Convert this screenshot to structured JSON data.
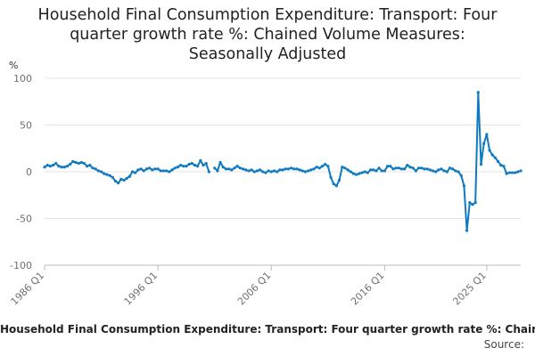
{
  "chart_data": {
    "type": "line",
    "title_lines": [
      "Household Final Consumption Expenditure: Transport: Four",
      "quarter growth rate %: Chained Volume Measures:",
      "Seasonally Adjusted"
    ],
    "ylabel": "%",
    "ylim": [
      -100,
      100
    ],
    "yticks": [
      "100",
      "50",
      "0",
      "-50",
      "-100"
    ],
    "ytick_values": [
      100,
      50,
      0,
      -50,
      -100
    ],
    "xtick_labels": [
      "1986 Q1",
      "1996 Q1",
      "2006 Q1",
      "2016 Q1",
      "2025 Q1"
    ],
    "xtick_index": [
      0,
      40,
      80,
      120,
      156
    ],
    "grid": true,
    "legend": "Household Final Consumption Expenditure: Transport: Four quarter growth rate %: Chained Volume Measures: Seasonally Adjusted",
    "source": "Source:",
    "line_color": "#0f7ac0",
    "series": [
      {
        "name": "Household Final Consumption Expenditure: Transport: Four quarter growth rate %: Chained Volume Measures: Seasonally Adjusted",
        "values": [
          5,
          7,
          6,
          7,
          9,
          6,
          5,
          5,
          6,
          8,
          11,
          10,
          9,
          10,
          9,
          6,
          7,
          4,
          3,
          1,
          0,
          -2,
          -3,
          -4,
          -6,
          -10,
          -12,
          -8,
          -9,
          -7,
          -5,
          0,
          -1,
          2,
          3,
          1,
          3,
          4,
          2,
          3,
          3,
          1,
          1,
          1,
          0,
          2,
          4,
          5,
          7,
          6,
          6,
          8,
          9,
          7,
          6,
          12,
          7,
          9,
          0,
          null,
          4,
          1,
          10,
          5,
          3,
          3,
          2,
          4,
          6,
          4,
          3,
          2,
          1,
          2,
          0,
          1,
          2,
          0,
          -1,
          1,
          0,
          1,
          0,
          2,
          2,
          3,
          3,
          4,
          3,
          3,
          2,
          1,
          0,
          1,
          2,
          3,
          5,
          4,
          6,
          8,
          6,
          -6,
          -13,
          -15,
          -9,
          5,
          4,
          2,
          0,
          -2,
          -3,
          -2,
          -1,
          0,
          -1,
          2,
          2,
          1,
          4,
          1,
          1,
          6,
          6,
          3,
          4,
          4,
          3,
          3,
          7,
          5,
          4,
          1,
          4,
          4,
          3,
          3,
          2,
          1,
          0,
          2,
          3,
          1,
          0,
          4,
          3,
          1,
          0,
          -4,
          -15,
          -63,
          -33,
          -35,
          -33,
          85,
          8,
          30,
          40,
          23,
          18,
          15,
          11,
          7,
          6,
          -2,
          -1,
          -1,
          -1,
          0,
          1
        ]
      }
    ]
  }
}
